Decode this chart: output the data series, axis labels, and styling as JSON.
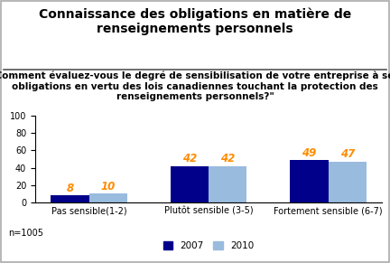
{
  "title": "Connaissance des obligations en matière de\nrenseignements personnels",
  "subtitle": "\"Comment évaluez-vous le degré de sensibilisation de votre entreprise à ses\nobligations en vertu des lois canadiennes touchant la protection des\nrenseignements personnels?\"",
  "categories": [
    "Pas sensible(1-2)",
    "Plutôt sensible (3-5)",
    "Fortement sensible (6-7)"
  ],
  "values_2007": [
    8,
    42,
    49
  ],
  "values_2010": [
    10,
    42,
    47
  ],
  "color_2007": "#00008B",
  "color_2010": "#99BBDD",
  "ylim": [
    0,
    100
  ],
  "yticks": [
    0,
    20,
    40,
    60,
    80,
    100
  ],
  "legend_2007": "2007",
  "legend_2010": "2010",
  "footnote": "n=1005",
  "bar_width": 0.32,
  "label_color": "#FF8C00",
  "background_color": "#FFFFFF",
  "title_fontsize": 10,
  "subtitle_fontsize": 7.5,
  "tick_fontsize": 7,
  "label_fontsize": 8.5,
  "border_color": "#AAAAAA"
}
